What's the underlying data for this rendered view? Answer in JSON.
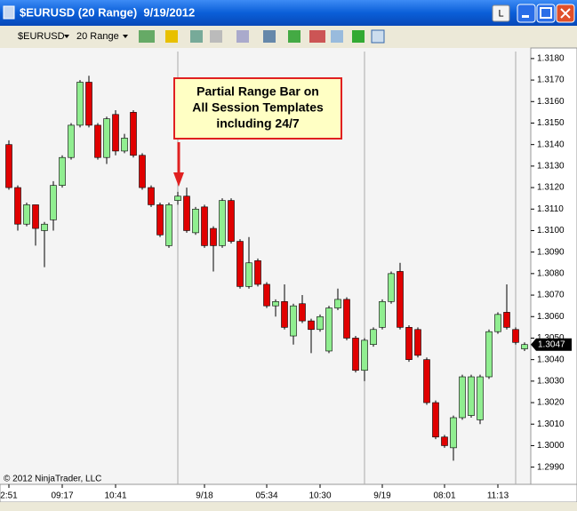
{
  "window": {
    "title": "$EURUSD (20 Range)  9/19/2012",
    "button": "L"
  },
  "toolbar": {
    "instrument": "$EURUSD",
    "period": "20 Range"
  },
  "copyright": "© 2012 NinjaTrader, LLC",
  "annotation": [
    "Partial Range Bar on",
    "All Session Templates",
    "including 24/7"
  ],
  "chart_data": {
    "type": "candlestick",
    "categories": [
      "2:51",
      null,
      null,
      null,
      null,
      null,
      "09:17",
      null,
      null,
      null,
      null,
      null,
      "10:41",
      null,
      null,
      null,
      null,
      null,
      null,
      null,
      null,
      null,
      "9/18",
      null,
      null,
      null,
      null,
      null,
      null,
      "05:34",
      null,
      null,
      null,
      null,
      null,
      "10:30",
      null,
      null,
      null,
      null,
      null,
      null,
      "9/19",
      null,
      null,
      null,
      null,
      null,
      null,
      "08:01",
      null,
      null,
      null,
      null,
      null,
      "11:13",
      null,
      null,
      null
    ],
    "open": [
      1.314,
      1.312,
      1.3103,
      1.3112,
      1.31,
      1.3105,
      1.3121,
      1.3134,
      1.3149,
      1.3169,
      1.3149,
      1.3134,
      1.3154,
      1.3137,
      1.3155,
      1.3135,
      1.312,
      1.3112,
      1.3093,
      1.3114,
      1.3116,
      1.3099,
      1.3111,
      1.3101,
      1.3093,
      1.3114,
      1.3095,
      1.3074,
      1.3086,
      1.3075,
      1.3065,
      1.3067,
      1.3051,
      1.3066,
      1.3058,
      1.3054,
      1.3044,
      1.3064,
      1.3068,
      1.305,
      1.3035,
      1.3047,
      1.3055,
      1.3067,
      1.3081,
      1.3055,
      1.3054,
      1.304,
      1.302,
      1.3004,
      1.2999,
      1.3013,
      1.3014,
      1.3012,
      1.3032,
      1.3053,
      1.3062,
      1.3054,
      1.3045
    ],
    "high": [
      1.3142,
      1.3121,
      1.3113,
      1.3112,
      1.3104,
      1.3123,
      1.3135,
      1.315,
      1.317,
      1.3172,
      1.315,
      1.3153,
      1.3156,
      1.3145,
      1.3156,
      1.3136,
      1.3121,
      1.3113,
      1.3113,
      1.3118,
      1.312,
      1.3111,
      1.3112,
      1.3102,
      1.3115,
      1.3115,
      1.3096,
      1.3097,
      1.3087,
      1.3076,
      1.3068,
      1.3075,
      1.3066,
      1.307,
      1.3059,
      1.3061,
      1.3065,
      1.3073,
      1.3069,
      1.3051,
      1.305,
      1.3055,
      1.3068,
      1.3081,
      1.3085,
      1.3056,
      1.3055,
      1.3041,
      1.3021,
      1.3005,
      1.3014,
      1.3033,
      1.3033,
      1.3033,
      1.3054,
      1.3062,
      1.3075,
      1.3055,
      1.3048
    ],
    "low": [
      1.3119,
      1.31,
      1.3102,
      1.3093,
      1.3083,
      1.31,
      1.312,
      1.3133,
      1.3148,
      1.3148,
      1.3133,
      1.3131,
      1.3135,
      1.3136,
      1.3134,
      1.3119,
      1.3111,
      1.3097,
      1.3092,
      1.3112,
      1.3099,
      1.3098,
      1.3092,
      1.3081,
      1.3092,
      1.3094,
      1.3073,
      1.3073,
      1.3074,
      1.3064,
      1.306,
      1.3054,
      1.3047,
      1.3057,
      1.3043,
      1.3053,
      1.3043,
      1.3063,
      1.3049,
      1.3034,
      1.303,
      1.3046,
      1.3054,
      1.3066,
      1.3054,
      1.3039,
      1.3041,
      1.3019,
      1.3003,
      1.2999,
      1.2993,
      1.3012,
      1.3013,
      1.301,
      1.3031,
      1.3052,
      1.3054,
      1.3047,
      1.3044
    ],
    "close": [
      1.312,
      1.3103,
      1.3112,
      1.3101,
      1.3103,
      1.3121,
      1.3134,
      1.3149,
      1.3169,
      1.3149,
      1.3134,
      1.3152,
      1.3137,
      1.3143,
      1.3135,
      1.312,
      1.3112,
      1.3098,
      1.3112,
      1.3116,
      1.31,
      1.311,
      1.3093,
      1.3093,
      1.3114,
      1.3095,
      1.3074,
      1.3085,
      1.3075,
      1.3065,
      1.3067,
      1.3055,
      1.3065,
      1.3058,
      1.3054,
      1.306,
      1.3064,
      1.3068,
      1.305,
      1.3035,
      1.3049,
      1.3054,
      1.3067,
      1.308,
      1.3055,
      1.304,
      1.3042,
      1.302,
      1.3004,
      1.3,
      1.3013,
      1.3032,
      1.3032,
      1.3032,
      1.3053,
      1.3061,
      1.3055,
      1.3048,
      1.3047
    ],
    "up_color": "#90ee90",
    "down_color": "#e00000",
    "last_price": 1.3047,
    "ylim": [
      1.2982,
      1.31845
    ],
    "yticks": [
      {
        "value": 1.299,
        "label": "1.2990"
      },
      {
        "value": 1.3,
        "label": "1.3000"
      },
      {
        "value": 1.301,
        "label": "1.3010"
      },
      {
        "value": 1.302,
        "label": "1.3020"
      },
      {
        "value": 1.303,
        "label": "1.3030"
      },
      {
        "value": 1.304,
        "label": "1.3040"
      },
      {
        "value": 1.305,
        "label": "1.3050"
      },
      {
        "value": 1.306,
        "label": "1.3060"
      },
      {
        "value": 1.307,
        "label": "1.3070"
      },
      {
        "value": 1.308,
        "label": "1.3080"
      },
      {
        "value": 1.309,
        "label": "1.3090"
      },
      {
        "value": 1.31,
        "label": "1.3100"
      },
      {
        "value": 1.311,
        "label": "1.3110"
      },
      {
        "value": 1.312,
        "label": "1.3120"
      },
      {
        "value": 1.313,
        "label": "1.3130"
      },
      {
        "value": 1.314,
        "label": "1.3140"
      },
      {
        "value": 1.315,
        "label": "1.3150"
      },
      {
        "value": 1.316,
        "label": "1.3160"
      },
      {
        "value": 1.317,
        "label": "1.3170"
      },
      {
        "value": 1.318,
        "label": "1.3180"
      }
    ]
  }
}
